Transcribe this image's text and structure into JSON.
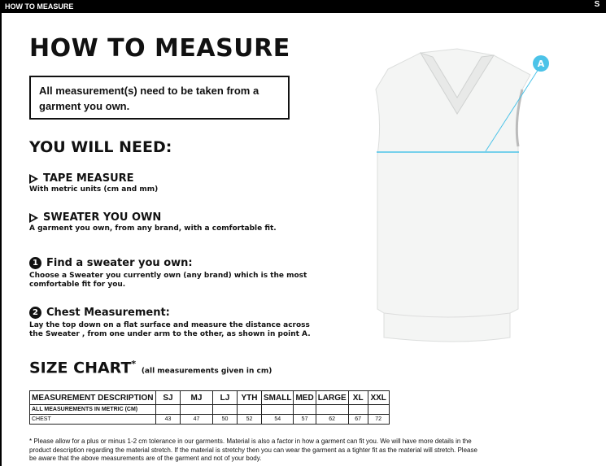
{
  "topbar": {
    "title": "HOW TO MEASURE",
    "logo_text": "SURRIDGE"
  },
  "title": "HOW TO MEASURE",
  "note": "All measurement(s) need to be taken from a garment you own.",
  "need_heading": "YOU WILL NEED:",
  "needs": [
    {
      "title": "TAPE MEASURE",
      "desc": "With metric units (cm and mm)"
    },
    {
      "title": "SWEATER YOU OWN",
      "desc": "A garment you own, from any brand, with a comfortable fit."
    }
  ],
  "steps": [
    {
      "num": "1",
      "title": "Find a sweater you own:",
      "desc": "Choose a Sweater you currently own (any brand) which is the most comfortable fit for you."
    },
    {
      "num": "2",
      "title": "Chest Measurement:",
      "desc": "Lay the top down on a flat surface and measure the distance across the Sweater , from one under arm to the other, as shown in point A."
    }
  ],
  "size_chart": {
    "title": "SIZE CHART",
    "star": "*",
    "note": "(all measurements given in cm)",
    "headers": [
      "MEASUREMENT DESCRIPTION",
      "SJ",
      "MJ",
      "LJ",
      "YTH",
      "SMALL",
      "MED",
      "LARGE",
      "XL",
      "XXL"
    ],
    "subheader": "ALL MEASUREMENTS IN METRIC (CM)",
    "rows": [
      {
        "label": "CHEST",
        "values": [
          "43",
          "47",
          "50",
          "52",
          "54",
          "57",
          "62",
          "67",
          "72"
        ]
      }
    ]
  },
  "diagram": {
    "point_label": "A",
    "accent": "#4cc3e8"
  },
  "footnote": "* Please allow for a plus or minus 1-2 cm tolerance in our garments. Material is also a factor in how a garment can fit you. We will have more details in the product description regarding the material stretch.  If the material is stretchy then you can wear the garment as a tighter fit as the material will stretch.  Please be aware that the above measurements are of the garment and not of your body."
}
